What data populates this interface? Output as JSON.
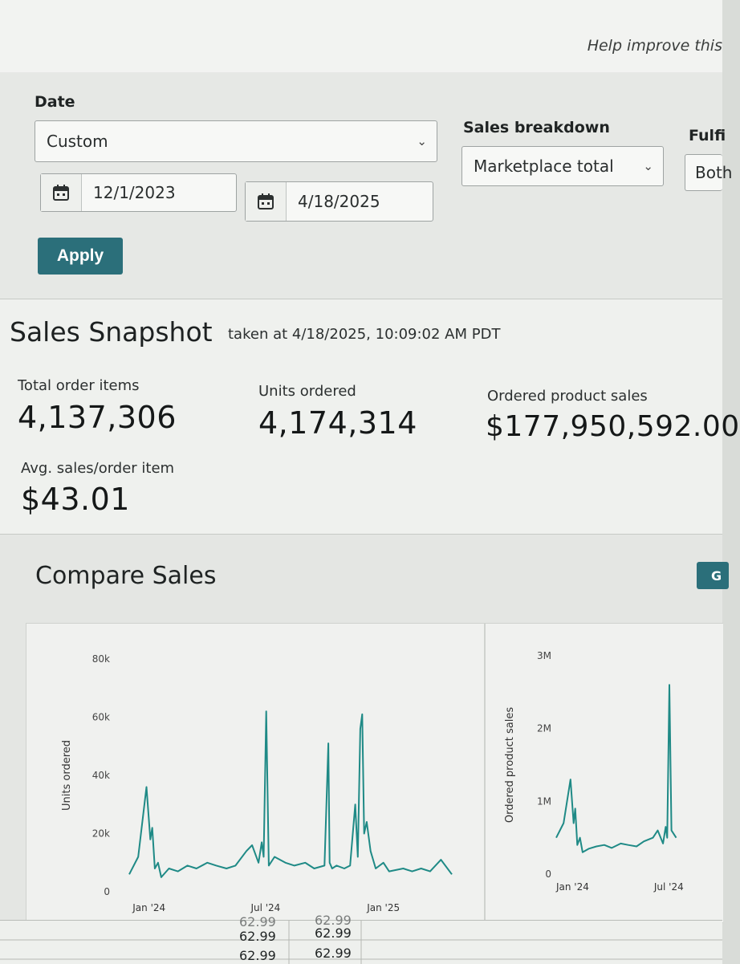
{
  "header": {
    "help_text": "Help improve this"
  },
  "filters": {
    "date_label": "Date",
    "date_mode": "Custom",
    "start_date": "12/1/2023",
    "end_date": "4/18/2025",
    "apply_label": "Apply",
    "sales_breakdown_label": "Sales breakdown",
    "sales_breakdown_value": "Marketplace total",
    "fulfillment_label": "Fulfi",
    "fulfillment_value": "Both"
  },
  "snapshot": {
    "title": "Sales Snapshot",
    "taken_at": "taken at 4/18/2025, 10:09:02 AM PDT",
    "metrics": [
      {
        "label": "Total order items",
        "value": "4,137,306"
      },
      {
        "label": "Units ordered",
        "value": "4,174,314"
      },
      {
        "label": "Ordered product sales",
        "value": "$177,950,592.00"
      },
      {
        "label": "Avg. sales/order item",
        "value": "$43.01"
      }
    ]
  },
  "compare": {
    "title": "Compare Sales",
    "graph_button": "G"
  },
  "chart_data": [
    {
      "type": "line",
      "ylabel": "Units ordered",
      "ylim": [
        0,
        80000
      ],
      "yticks": [
        "0",
        "20k",
        "40k",
        "60k",
        "80k"
      ],
      "xticks": [
        "Jan '24",
        "Jul '24",
        "Jan '25"
      ],
      "color": "#1f8a86",
      "x": [
        "2023-12-01",
        "2023-12-15",
        "2023-12-28",
        "2024-01-03",
        "2024-01-06",
        "2024-01-10",
        "2024-01-15",
        "2024-01-20",
        "2024-02-01",
        "2024-02-15",
        "2024-03-01",
        "2024-03-15",
        "2024-04-01",
        "2024-04-15",
        "2024-05-01",
        "2024-05-15",
        "2024-06-01",
        "2024-06-10",
        "2024-06-20",
        "2024-06-25",
        "2024-06-28",
        "2024-07-02",
        "2024-07-06",
        "2024-07-15",
        "2024-08-01",
        "2024-08-15",
        "2024-09-01",
        "2024-09-15",
        "2024-10-01",
        "2024-10-07",
        "2024-10-09",
        "2024-10-13",
        "2024-10-20",
        "2024-11-01",
        "2024-11-10",
        "2024-11-18",
        "2024-11-22",
        "2024-11-26",
        "2024-11-29",
        "2024-12-02",
        "2024-12-06",
        "2024-12-12",
        "2024-12-20",
        "2025-01-01",
        "2025-01-10",
        "2025-02-01",
        "2025-02-15",
        "2025-03-01",
        "2025-03-15",
        "2025-04-01",
        "2025-04-18"
      ],
      "y": [
        6000,
        12000,
        36000,
        18000,
        22000,
        8000,
        10000,
        5000,
        8000,
        7000,
        9000,
        8000,
        10000,
        9000,
        8000,
        9000,
        14000,
        16000,
        10000,
        17000,
        12000,
        62000,
        9000,
        12000,
        10000,
        9000,
        10000,
        8000,
        9000,
        51000,
        10000,
        8000,
        9000,
        8000,
        9000,
        30000,
        12000,
        56000,
        61000,
        20000,
        24000,
        14000,
        8000,
        10000,
        7000,
        8000,
        7000,
        8000,
        7000,
        11000,
        6000
      ]
    },
    {
      "type": "line",
      "ylabel": "Ordered product sales",
      "ylim": [
        0,
        3000000
      ],
      "yticks": [
        "0",
        "1M",
        "2M",
        "3M"
      ],
      "xticks": [
        "Jan '24",
        "Jul '24"
      ],
      "color": "#1f8a86",
      "x": [
        "2023-12-01",
        "2023-12-15",
        "2023-12-28",
        "2024-01-03",
        "2024-01-06",
        "2024-01-10",
        "2024-01-15",
        "2024-01-20",
        "2024-02-01",
        "2024-02-15",
        "2024-03-01",
        "2024-03-15",
        "2024-04-01",
        "2024-04-15",
        "2024-05-01",
        "2024-05-15",
        "2024-06-01",
        "2024-06-10",
        "2024-06-20",
        "2024-06-25",
        "2024-06-28",
        "2024-07-02",
        "2024-07-06",
        "2024-07-15"
      ],
      "y": [
        500000,
        700000,
        1300000,
        700000,
        900000,
        400000,
        500000,
        300000,
        350000,
        380000,
        400000,
        360000,
        420000,
        400000,
        380000,
        450000,
        500000,
        600000,
        420000,
        650000,
        500000,
        2600000,
        600000,
        500000
      ]
    }
  ],
  "sheet": {
    "cells": [
      "62.99",
      "62.99",
      "62.99",
      "62.99",
      "62.99",
      "62.99"
    ]
  }
}
